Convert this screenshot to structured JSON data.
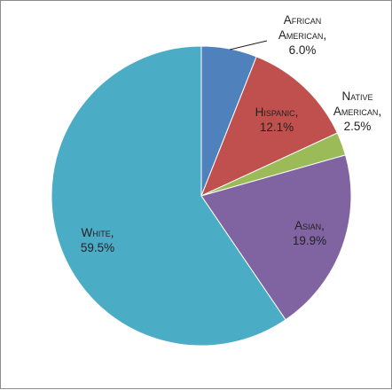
{
  "chart_data": {
    "type": "pie",
    "title": "",
    "categories": [
      "African American",
      "Hispanic",
      "Native American",
      "Asian",
      "White"
    ],
    "values": [
      6.0,
      12.1,
      2.5,
      19.9,
      59.5
    ],
    "colors": [
      "#4f81bd",
      "#c0504d",
      "#9bbb59",
      "#8064a2",
      "#4bacc6"
    ],
    "labels": [
      {
        "lines": [
          "African",
          "American,"
        ],
        "value": "6.0%"
      },
      {
        "lines": [
          "Hispanic,"
        ],
        "value": "12.1%"
      },
      {
        "lines": [
          "Native",
          "American,"
        ],
        "value": "2.5%"
      },
      {
        "lines": [
          "Asian,"
        ],
        "value": "19.9%"
      },
      {
        "lines": [
          "White,"
        ],
        "value": "59.5%"
      }
    ],
    "start_angle": "12 o'clock",
    "direction": "clockwise",
    "legend": "none"
  }
}
